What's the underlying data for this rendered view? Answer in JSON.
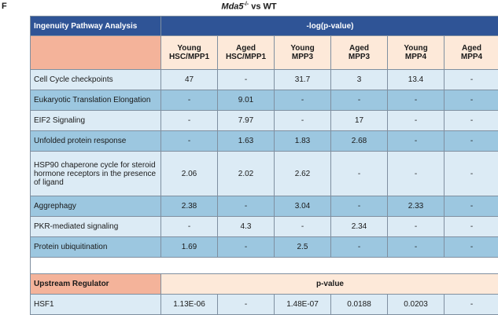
{
  "figure": {
    "panel_label": "F",
    "title_gene": "Mda5",
    "title_superscript": "-/-",
    "title_rest": " vs WT"
  },
  "table": {
    "header_left": "Ingenuity Pathway Analysis",
    "header_right": "-log(p-value)",
    "columns": [
      [
        "Young",
        "HSC/MPP1"
      ],
      [
        "Aged",
        "HSC/MPP1"
      ],
      [
        "Young",
        "MPP3"
      ],
      [
        "Aged",
        "MPP3"
      ],
      [
        "Young",
        "MPP4"
      ],
      [
        "Aged",
        "MPP4"
      ]
    ],
    "rows": [
      {
        "label": "Cell Cycle checkpoints",
        "values": [
          "47",
          "-",
          "31.7",
          "3",
          "13.4",
          "-"
        ]
      },
      {
        "label": "Eukaryotic Translation Elongation",
        "values": [
          "-",
          "9.01",
          "-",
          "-",
          "-",
          "-"
        ]
      },
      {
        "label": "EIF2 Signaling",
        "values": [
          "-",
          "7.97",
          "-",
          "17",
          "-",
          "-"
        ]
      },
      {
        "label": "Unfolded protein response",
        "values": [
          "-",
          "1.63",
          "1.83",
          "2.68",
          "-",
          "-"
        ]
      },
      {
        "label": "HSP90 chaperone cycle for steroid hormone receptors in the presence of ligand",
        "values": [
          "2.06",
          "2.02",
          "2.62",
          "-",
          "-",
          "-"
        ]
      },
      {
        "label": "Aggrephagy",
        "values": [
          "2.38",
          "-",
          "3.04",
          "-",
          "2.33",
          "-"
        ]
      },
      {
        "label": "PKR-mediated signaling",
        "values": [
          "-",
          "4.3",
          "-",
          "2.34",
          "-",
          "-"
        ]
      },
      {
        "label": "Protein ubiquitination",
        "values": [
          "1.69",
          "-",
          "2.5",
          "-",
          "-",
          "-"
        ]
      }
    ],
    "upstream_header_left": "Upstream Regulator",
    "upstream_header_right": "p-value",
    "upstream_rows": [
      {
        "label": "HSF1",
        "values": [
          "1.13E-06",
          "-",
          "1.48E-07",
          "0.0188",
          "0.0203",
          "-"
        ]
      }
    ]
  }
}
